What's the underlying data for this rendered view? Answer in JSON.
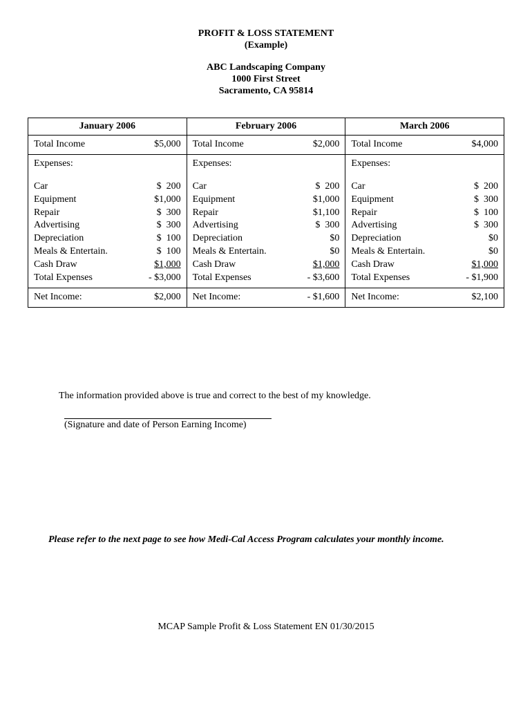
{
  "header": {
    "title1": "PROFIT & LOSS STATEMENT",
    "title2": "(Example)",
    "company": "ABC Landscaping Company",
    "addr1": "1000 First Street",
    "addr2": "Sacramento, CA 95814"
  },
  "months": [
    {
      "name": "January 2006",
      "total_income_label": "Total Income",
      "total_income": "$5,000",
      "expenses_label": "Expenses:",
      "items": [
        {
          "label": "Car",
          "val": "$  200"
        },
        {
          "label": "Equipment",
          "val": "$1,000"
        },
        {
          "label": "Repair",
          "val": "$  300"
        },
        {
          "label": "Advertising",
          "val": "$  300"
        },
        {
          "label": "Depreciation",
          "val": "$  100"
        },
        {
          "label": "Meals & Entertain.",
          "val": "$  100"
        }
      ],
      "cash_draw_label": "Cash Draw",
      "cash_draw": "$1,000",
      "total_exp_label": "Total Expenses",
      "total_exp": "- $3,000",
      "net_label": "Net Income:",
      "net": "$2,000"
    },
    {
      "name": "February 2006",
      "total_income_label": "Total Income",
      "total_income": "$2,000",
      "expenses_label": "Expenses:",
      "items": [
        {
          "label": "Car",
          "val": "$  200"
        },
        {
          "label": "Equipment",
          "val": "$1,000"
        },
        {
          "label": "Repair",
          "val": "$1,100"
        },
        {
          "label": "Advertising",
          "val": "$  300"
        },
        {
          "label": "Depreciation",
          "val": "$0"
        },
        {
          "label": "Meals & Entertain.",
          "val": "$0"
        }
      ],
      "cash_draw_label": "Cash Draw",
      "cash_draw": "$1,000",
      "total_exp_label": "Total Expenses",
      "total_exp": "- $3,600",
      "net_label": "Net Income:",
      "net": "- $1,600"
    },
    {
      "name": "March 2006",
      "total_income_label": "Total Income",
      "total_income": "$4,000",
      "expenses_label": "Expenses:",
      "items": [
        {
          "label": "Car",
          "val": "$  200"
        },
        {
          "label": "Equipment",
          "val": "$  300"
        },
        {
          "label": "Repair",
          "val": "$  100"
        },
        {
          "label": "Advertising",
          "val": "$  300"
        },
        {
          "label": "Depreciation",
          "val": "$0"
        },
        {
          "label": "Meals & Entertain.",
          "val": "$0"
        }
      ],
      "cash_draw_label": "Cash Draw",
      "cash_draw": "$1,000",
      "total_exp_label": "Total Expenses",
      "total_exp": "- $1,900",
      "net_label": "Net Income:",
      "net": "$2,100"
    }
  ],
  "attestation": "The information provided above is true and correct to the best of my knowledge.",
  "sig_caption": "(Signature and date of Person Earning Income)",
  "note": "Please refer to the next page to see how Medi-Cal Access Program calculates your monthly income.",
  "footer": "MCAP Sample Profit & Loss Statement EN 01/30/2015"
}
